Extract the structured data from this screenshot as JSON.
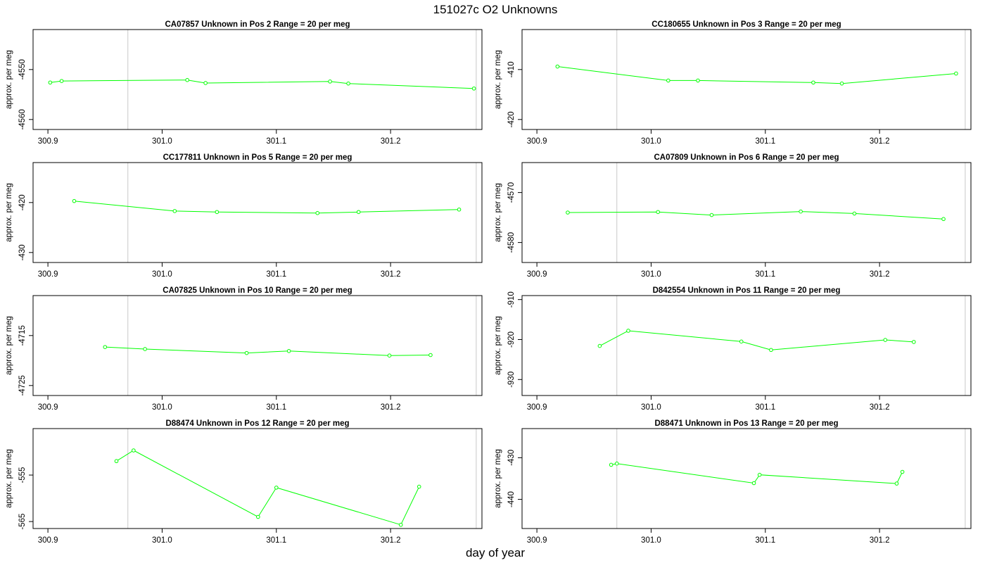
{
  "title": "151027c  O2 Unknowns",
  "xlabel": "day of year",
  "colors": {
    "series": "#00ff00",
    "marker_line": "#c8c8c8",
    "frame": "#000000"
  },
  "chart_data": [
    {
      "type": "line",
      "title": "CA07857    Unknown in Pos 2         Range = 20 per meg",
      "ylabel": "approx. per meg",
      "xlim": [
        300.887,
        301.28
      ],
      "ylim": [
        -4562,
        -4542
      ],
      "xticks": [
        300.9,
        301.0,
        301.1,
        301.2
      ],
      "xticklabels": [
        "300.9",
        "301.0",
        "301.1",
        "301.2"
      ],
      "yticks": [
        -4550,
        -4560
      ],
      "yticklabels": [
        "-4550",
        "-4560"
      ],
      "vlines": [
        300.97,
        301.275
      ],
      "x": [
        300.902,
        300.912,
        301.022,
        301.038,
        301.147,
        301.163,
        301.273
      ],
      "y": [
        -4552.6,
        -4552.3,
        -4552.1,
        -4552.7,
        -4552.4,
        -4552.8,
        -4553.8
      ]
    },
    {
      "type": "line",
      "title": "CC180655    Unknown in Pos 3         Range = 20 per meg",
      "ylabel": "approx. per meg",
      "xlim": [
        300.887,
        301.28
      ],
      "ylim": [
        -422,
        -402
      ],
      "xticks": [
        300.9,
        301.0,
        301.1,
        301.2
      ],
      "xticklabels": [
        "300.9",
        "301.0",
        "301.1",
        "301.2"
      ],
      "yticks": [
        -410,
        -420
      ],
      "yticklabels": [
        "-410",
        "-420"
      ],
      "vlines": [
        300.97,
        301.275
      ],
      "x": [
        300.918,
        301.015,
        301.041,
        301.142,
        301.167,
        301.267
      ],
      "y": [
        -409.4,
        -412.2,
        -412.2,
        -412.6,
        -412.8,
        -410.8
      ]
    },
    {
      "type": "line",
      "title": "CC177811    Unknown in Pos 5         Range = 20 per meg",
      "ylabel": "approx. per meg",
      "xlim": [
        300.887,
        301.28
      ],
      "ylim": [
        -432,
        -412
      ],
      "xticks": [
        300.9,
        301.0,
        301.1,
        301.2
      ],
      "xticklabels": [
        "300.9",
        "301.0",
        "301.1",
        "301.2"
      ],
      "yticks": [
        -420,
        -430
      ],
      "yticklabels": [
        "-420",
        "-430"
      ],
      "vlines": [
        300.97,
        301.275
      ],
      "x": [
        300.923,
        301.011,
        301.048,
        301.136,
        301.172,
        301.26
      ],
      "y": [
        -419.7,
        -421.7,
        -421.9,
        -422.1,
        -421.9,
        -421.4
      ]
    },
    {
      "type": "line",
      "title": "CA07809    Unknown in Pos 6         Range = 20 per meg",
      "ylabel": "approx. per meg",
      "xlim": [
        300.887,
        301.28
      ],
      "ylim": [
        -4584,
        -4564
      ],
      "xticks": [
        300.9,
        301.0,
        301.1,
        301.2
      ],
      "xticklabels": [
        "300.9",
        "301.0",
        "301.1",
        "301.2"
      ],
      "yticks": [
        -4570,
        -4580
      ],
      "yticklabels": [
        "-4570",
        "-4580"
      ],
      "vlines": [
        300.97,
        301.275
      ],
      "x": [
        300.927,
        301.006,
        301.053,
        301.131,
        301.178,
        301.256
      ],
      "y": [
        -4574.0,
        -4573.9,
        -4574.5,
        -4573.8,
        -4574.2,
        -4575.3
      ]
    },
    {
      "type": "line",
      "title": "CA07825    Unknown in Pos 10         Range = 20 per meg",
      "ylabel": "approx. per meg",
      "xlim": [
        300.887,
        301.28
      ],
      "ylim": [
        -4727,
        -4707
      ],
      "xticks": [
        300.9,
        301.0,
        301.1,
        301.2
      ],
      "xticklabels": [
        "300.9",
        "301.0",
        "301.1",
        "301.2"
      ],
      "yticks": [
        -4715,
        -4725
      ],
      "yticklabels": [
        "-4715",
        "-4725"
      ],
      "vlines": [
        300.97,
        301.275
      ],
      "x": [
        300.95,
        300.985,
        301.074,
        301.111,
        301.199,
        301.235
      ],
      "y": [
        -4717.3,
        -4717.7,
        -4718.5,
        -4718.1,
        -4719.0,
        -4718.9
      ]
    },
    {
      "type": "line",
      "title": "D842554    Unknown in Pos 11         Range = 20 per meg",
      "ylabel": "approx. per meg",
      "xlim": [
        300.887,
        301.28
      ],
      "ylim": [
        -934,
        -909
      ],
      "xticks": [
        300.9,
        301.0,
        301.1,
        301.2
      ],
      "xticklabels": [
        "300.9",
        "301.0",
        "301.1",
        "301.2"
      ],
      "yticks": [
        -910,
        -920,
        -930
      ],
      "yticklabels": [
        "-910",
        "-920",
        "-930"
      ],
      "vlines": [
        300.97,
        301.275
      ],
      "x": [
        300.955,
        300.98,
        301.079,
        301.105,
        301.205,
        301.23
      ],
      "y": [
        -921.6,
        -917.8,
        -920.5,
        -922.6,
        -920.1,
        -920.6
      ]
    },
    {
      "type": "line",
      "title": "D88474    Unknown in Pos 12         Range = 20 per meg",
      "ylabel": "approx. per meg",
      "xlim": [
        300.887,
        301.28
      ],
      "ylim": [
        -566.5,
        -545
      ],
      "xticks": [
        300.9,
        301.0,
        301.1,
        301.2
      ],
      "xticklabels": [
        "300.9",
        "301.0",
        "301.1",
        "301.2"
      ],
      "yticks": [
        -555,
        -565
      ],
      "yticklabels": [
        "-555",
        "-565"
      ],
      "vlines": [
        300.97,
        301.275
      ],
      "x": [
        300.96,
        300.975,
        301.084,
        301.1,
        301.209,
        301.225
      ],
      "y": [
        -552.0,
        -549.7,
        -564.0,
        -557.7,
        -565.7,
        -557.5
      ]
    },
    {
      "type": "line",
      "title": "D88471    Unknown in Pos 13         Range = 20 per meg",
      "ylabel": "approx. per meg",
      "xlim": [
        300.887,
        301.28
      ],
      "ylim": [
        -447,
        -423
      ],
      "xticks": [
        300.9,
        301.0,
        301.1,
        301.2
      ],
      "xticklabels": [
        "300.9",
        "301.0",
        "301.1",
        "301.2"
      ],
      "yticks": [
        -430,
        -440
      ],
      "yticklabels": [
        "-430",
        "-440"
      ],
      "vlines": [
        300.97,
        301.275
      ],
      "x": [
        300.965,
        300.97,
        301.09,
        301.095,
        301.215,
        301.22
      ],
      "y": [
        -431.7,
        -431.4,
        -436.1,
        -434.1,
        -436.2,
        -433.4
      ]
    }
  ]
}
